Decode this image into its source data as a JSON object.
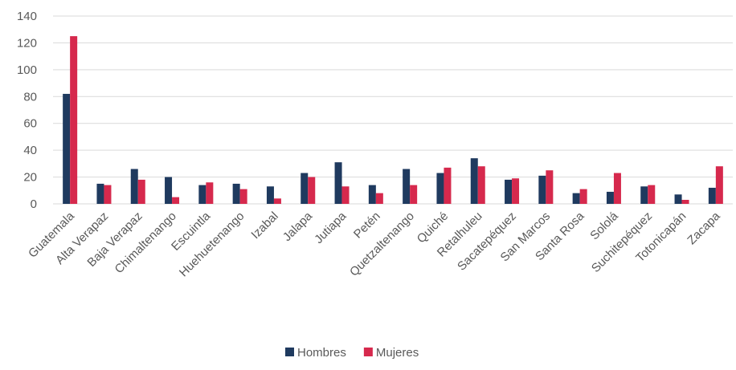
{
  "chart_data": {
    "type": "bar",
    "title": "",
    "xlabel": "",
    "ylabel": "",
    "ylim": [
      0,
      140
    ],
    "yticks": [
      0,
      20,
      40,
      60,
      80,
      100,
      120,
      140
    ],
    "grid": true,
    "legend_position": "bottom",
    "categories": [
      "Guatemala",
      "Alta Verapaz",
      "Baja Verapaz",
      "Chimaltenango",
      "Escuintla",
      "Huehuetenango",
      "Izabal",
      "Jalapa",
      "Jutiapa",
      "Petén",
      "Quetzaltenango",
      "Quiché",
      "Retalhuleu",
      "Sacatepéquez",
      "San Marcos",
      "Santa Rosa",
      "Sololá",
      "Suchitepéquez",
      "Totonicapán",
      "Zacapa"
    ],
    "series": [
      {
        "name": "Hombres",
        "color": "#1f3a5f",
        "values": [
          82,
          15,
          26,
          20,
          14,
          15,
          13,
          23,
          31,
          14,
          26,
          23,
          34,
          18,
          21,
          8,
          9,
          13,
          7,
          12
        ]
      },
      {
        "name": "Mujeres",
        "color": "#d6294d",
        "values": [
          125,
          14,
          18,
          5,
          16,
          11,
          4,
          20,
          13,
          8,
          14,
          27,
          28,
          19,
          25,
          11,
          23,
          14,
          3,
          28
        ]
      }
    ]
  }
}
